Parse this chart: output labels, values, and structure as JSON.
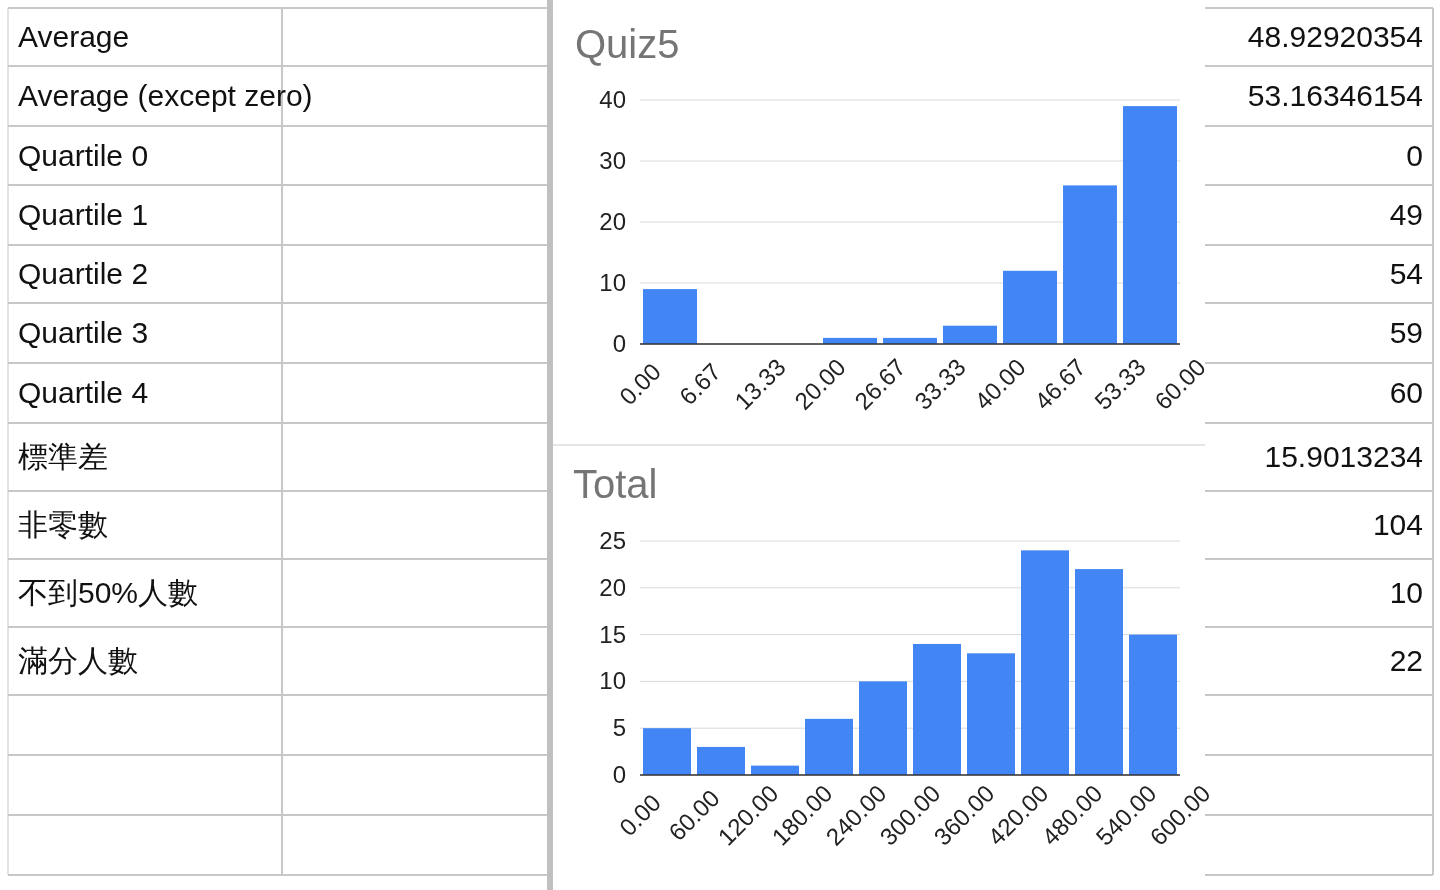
{
  "chart_data": [
    {
      "type": "other",
      "categories": [
        "Average",
        "Average (except zero)",
        "Quartile 0",
        "Quartile 1",
        "Quartile 2",
        "Quartile 3",
        "Quartile 4",
        "標準差",
        "非零數",
        "不到50%人數",
        "滿分人數"
      ],
      "values": [
        48.92920354,
        53.16346154,
        0,
        49,
        54,
        59,
        60,
        15.9013234,
        104,
        10,
        22
      ],
      "data_labels": true
    },
    {
      "type": "histogram",
      "title": "Quiz5",
      "color": "#4285f4",
      "grid": "y",
      "bins": [
        0,
        6.67,
        13.33,
        20,
        26.67,
        33.33,
        40,
        46.67,
        53.33,
        60
      ],
      "values": [
        9,
        0,
        0,
        1,
        1,
        3,
        12,
        26,
        39
      ],
      "xlim": [
        0,
        60
      ],
      "xticks": [
        {
          "value": 0,
          "label": "0.00"
        },
        {
          "value": 6.67,
          "label": "6.67"
        },
        {
          "value": 13.33,
          "label": "13.33"
        },
        {
          "value": 20,
          "label": "20.00"
        },
        {
          "value": 26.67,
          "label": "26.67"
        },
        {
          "value": 33.33,
          "label": "33.33"
        },
        {
          "value": 40,
          "label": "40.00"
        },
        {
          "value": 46.67,
          "label": "46.67"
        },
        {
          "value": 53.33,
          "label": "53.33"
        },
        {
          "value": 60,
          "label": "60.00"
        }
      ],
      "ylim": [
        0,
        40
      ],
      "yticks": [
        0,
        10,
        20,
        30,
        40
      ]
    },
    {
      "type": "histogram",
      "title": "Total",
      "color": "#4285f4",
      "grid": "y",
      "bins": [
        0,
        60,
        120,
        180,
        240,
        300,
        360,
        420,
        480,
        540,
        600
      ],
      "values": [
        5,
        3,
        1,
        6,
        10,
        14,
        13,
        24,
        22,
        15
      ],
      "xlim": [
        0,
        600
      ],
      "xticks": [
        {
          "value": 0,
          "label": "0.00"
        },
        {
          "value": 60,
          "label": "60.00"
        },
        {
          "value": 120,
          "label": "120.00"
        },
        {
          "value": 180,
          "label": "180.00"
        },
        {
          "value": 240,
          "label": "240.00"
        },
        {
          "value": 300,
          "label": "300.00"
        },
        {
          "value": 360,
          "label": "360.00"
        },
        {
          "value": 420,
          "label": "420.00"
        },
        {
          "value": 480,
          "label": "480.00"
        },
        {
          "value": 540,
          "label": "540.00"
        },
        {
          "value": 600,
          "label": "600.00"
        }
      ],
      "ylim": [
        0,
        25
      ],
      "yticks": [
        0,
        5,
        10,
        15,
        20,
        25
      ]
    }
  ]
}
